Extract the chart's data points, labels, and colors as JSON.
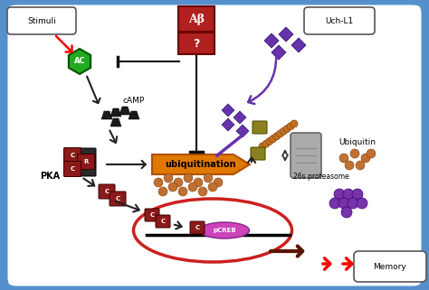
{
  "fig_width": 4.74,
  "fig_height": 3.21,
  "dpi": 100,
  "bg_color": "#d8d8d8",
  "cell_color": "#5590cc",
  "stimuli_label": "Stimuli",
  "uch_label": "Uch-L1",
  "memory_label": "Memory",
  "pka_label": "PKA",
  "camp_label": "cAMP",
  "ubiquitination_label": "ubiquitination",
  "ubiquitin_label": "Ubiquitin",
  "proteasome_label": "26s proteasome",
  "ab_label": "Aβ",
  "question_label": "?"
}
